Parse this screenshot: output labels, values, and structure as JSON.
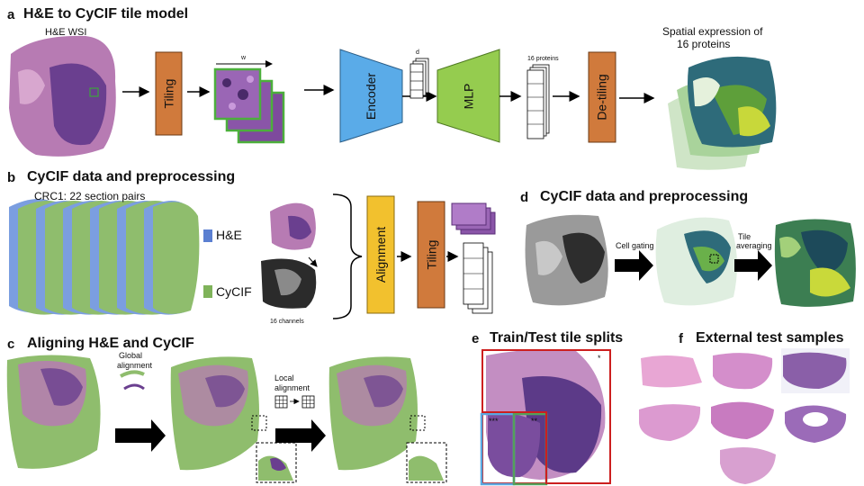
{
  "panel_a": {
    "letter": "a",
    "title": "H&E to CyCIF tile model",
    "wsi_label": "H&E WSI",
    "tiling": "Tiling",
    "w_label": "w",
    "d_label": "d",
    "encoder": "Encoder",
    "mlp": "MLP",
    "proteins_label": "16 proteins",
    "detiling": "De-tiling",
    "output_label_1": "Spatial expression of",
    "output_label_2": "16 proteins"
  },
  "panel_b": {
    "letter": "b",
    "title": "CyCIF data and preprocessing",
    "subtitle": "CRC1: 22 section pairs",
    "legend_he": "H&E",
    "legend_cycif": "CyCIF",
    "channels_label": "16 channels",
    "alignment": "Alignment",
    "tiling": "Tiling"
  },
  "panel_c": {
    "letter": "c",
    "title": "Aligning H&E and CyCIF",
    "global_1": "Global",
    "global_2": "alignment",
    "local_1": "Local",
    "local_2": "alignment"
  },
  "panel_d": {
    "letter": "d",
    "title": "CyCIF data and preprocessing",
    "cell_gating": "Cell gating",
    "tile_1": "Tile",
    "tile_2": "averaging"
  },
  "panel_e": {
    "letter": "e",
    "title": "Train/Test tile splits",
    "marker_1": "*",
    "marker_3": "***",
    "marker_2": "**"
  },
  "panel_f": {
    "letter": "f",
    "title": "External test samples"
  },
  "colors": {
    "tiling_orange": "#d07a3c",
    "encoder_blue": "#5aabe8",
    "mlp_green": "#95cc4f",
    "alignment_yellow": "#f2c12e",
    "he_blue": "#5b7fd1",
    "cycif_green": "#7fb35a",
    "split_red": "#cc1f1f",
    "split_blue": "#5aa8e0",
    "split_green": "#54a05a"
  }
}
